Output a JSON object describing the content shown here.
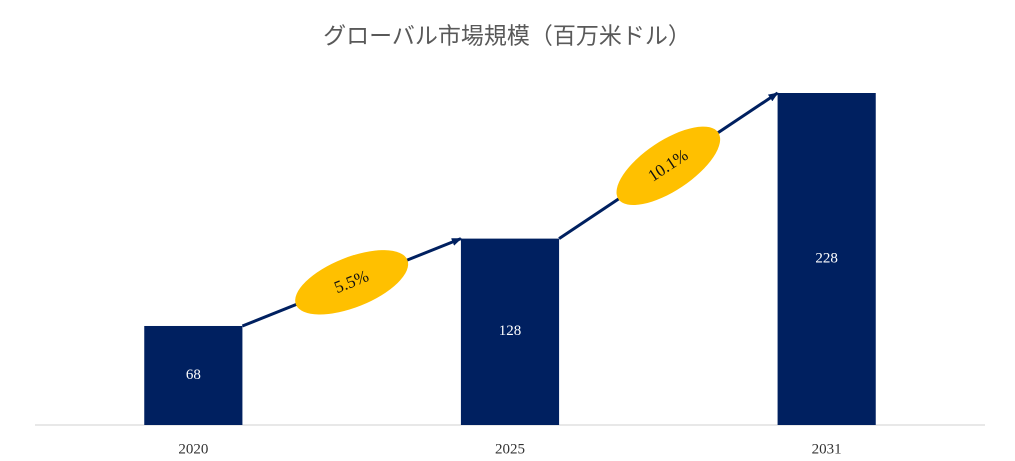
{
  "chart_data": {
    "type": "bar",
    "title": "グローバル市場規模（百万米ドル）",
    "categories": [
      "2020",
      "2025",
      "2031"
    ],
    "values": [
      68,
      128,
      228
    ],
    "color": "#002060",
    "ylim": [
      0,
      228
    ],
    "annotations": [
      "5.5%",
      "10.1%"
    ],
    "annotation_color": "#ffc000"
  }
}
